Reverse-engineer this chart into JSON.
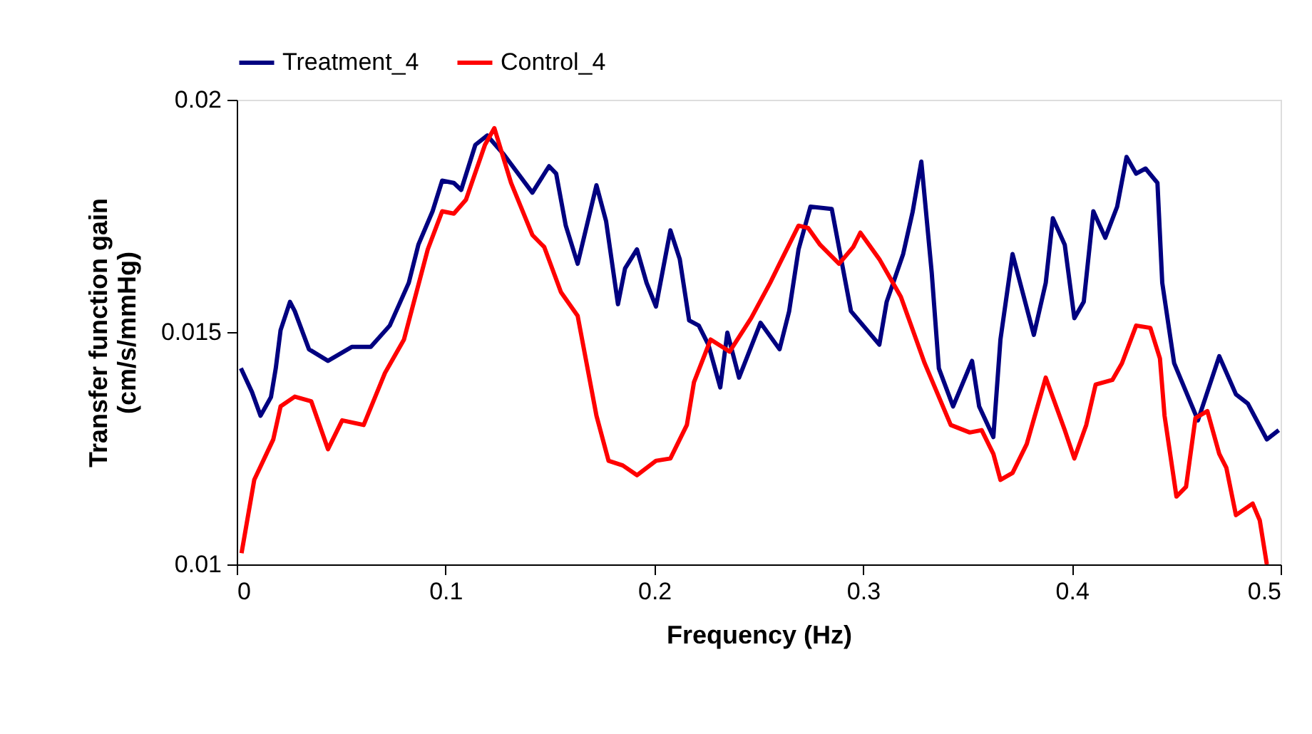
{
  "chart_data": {
    "type": "line",
    "xlabel": "Frequency (Hz)",
    "ylabel": "Transfer function gain\n(cm/s/mmHg)",
    "xlim": [
      0,
      0.5
    ],
    "xticks": [
      0,
      0.1,
      0.2,
      0.3,
      0.4,
      0.5
    ],
    "ylim": [
      0.01,
      0.02
    ],
    "yticks": [
      0.01,
      0.015,
      0.02
    ],
    "grid": false,
    "legend": "top",
    "marker": "none",
    "line_style": "solid",
    "series": [
      {
        "name": "Treatment_4",
        "color": "#000080",
        "x": [
          0.002,
          0.0073,
          0.0114,
          0.0164,
          0.0187,
          0.021,
          0.0255,
          0.0278,
          0.0346,
          0.0437,
          0.0551,
          0.0642,
          0.0733,
          0.0824,
          0.087,
          0.0938,
          0.0984,
          0.104,
          0.1075,
          0.1143,
          0.12,
          0.128,
          0.1416,
          0.1496,
          0.153,
          0.1576,
          0.1633,
          0.1723,
          0.1769,
          0.1826,
          0.186,
          0.1917,
          0.1963,
          0.2008,
          0.2077,
          0.2122,
          0.2167,
          0.2213,
          0.2259,
          0.2316,
          0.235,
          0.2406,
          0.2509,
          0.26,
          0.2646,
          0.2691,
          0.2748,
          0.285,
          0.2942,
          0.3078,
          0.3113,
          0.3192,
          0.3238,
          0.3279,
          0.3329,
          0.3363,
          0.3431,
          0.3522,
          0.3556,
          0.3624,
          0.3658,
          0.3716,
          0.3818,
          0.3875,
          0.3909,
          0.3966,
          0.4012,
          0.4057,
          0.4103,
          0.416,
          0.4217,
          0.4262,
          0.4308,
          0.4353,
          0.441,
          0.4433,
          0.449,
          0.4604,
          0.4672,
          0.4706,
          0.4786,
          0.4843,
          0.4934,
          0.4991
        ],
        "values": [
          0.01422,
          0.01371,
          0.0132,
          0.0136,
          0.01422,
          0.01504,
          0.01565,
          0.01545,
          0.01463,
          0.01438,
          0.01468,
          0.01468,
          0.01514,
          0.01606,
          0.01688,
          0.0176,
          0.01826,
          0.01821,
          0.01806,
          0.01903,
          0.01923,
          0.01882,
          0.018,
          0.01857,
          0.01841,
          0.01729,
          0.01647,
          0.01816,
          0.01739,
          0.0156,
          0.01637,
          0.01678,
          0.01606,
          0.01555,
          0.01719,
          0.01657,
          0.01525,
          0.01514,
          0.01473,
          0.01381,
          0.01499,
          0.01402,
          0.0152,
          0.01463,
          0.01545,
          0.01678,
          0.0177,
          0.01765,
          0.01545,
          0.01473,
          0.01565,
          0.01668,
          0.0176,
          0.01867,
          0.01627,
          0.01422,
          0.0134,
          0.01438,
          0.0134,
          0.01274,
          0.01484,
          0.01668,
          0.01494,
          0.01606,
          0.01745,
          0.01688,
          0.0153,
          0.01565,
          0.0176,
          0.01703,
          0.0177,
          0.01877,
          0.01841,
          0.01852,
          0.01821,
          0.01606,
          0.01433,
          0.0131,
          0.01402,
          0.01448,
          0.01366,
          0.01346,
          0.01269,
          0.01289
        ]
      },
      {
        "name": "Control_4",
        "color": "#ff0000",
        "x": [
          0.0023,
          0.0084,
          0.0175,
          0.021,
          0.0278,
          0.0357,
          0.0437,
          0.0505,
          0.0608,
          0.071,
          0.0801,
          0.0915,
          0.0984,
          0.104,
          0.1098,
          0.1189,
          0.1234,
          0.1314,
          0.1416,
          0.1473,
          0.1553,
          0.1633,
          0.1723,
          0.1781,
          0.1849,
          0.1917,
          0.2008,
          0.2077,
          0.2156,
          0.219,
          0.227,
          0.2361,
          0.2464,
          0.2555,
          0.26,
          0.2691,
          0.2737,
          0.2794,
          0.2885,
          0.2953,
          0.2987,
          0.3078,
          0.3181,
          0.3295,
          0.342,
          0.3511,
          0.3568,
          0.3624,
          0.3658,
          0.3716,
          0.3784,
          0.3875,
          0.3966,
          0.4012,
          0.4069,
          0.4114,
          0.4194,
          0.424,
          0.4308,
          0.4376,
          0.4422,
          0.4444,
          0.4501,
          0.4547,
          0.4592,
          0.4649,
          0.4706,
          0.474,
          0.4786,
          0.4866,
          0.49,
          0.4934
        ],
        "values": [
          0.01024,
          0.01182,
          0.01269,
          0.0134,
          0.01361,
          0.01351,
          0.01248,
          0.0131,
          0.013,
          0.01412,
          0.01484,
          0.01678,
          0.0176,
          0.01755,
          0.01785,
          0.01903,
          0.01939,
          0.01821,
          0.01709,
          0.01683,
          0.01586,
          0.01535,
          0.0132,
          0.01223,
          0.01213,
          0.01192,
          0.01223,
          0.01228,
          0.013,
          0.01392,
          0.01484,
          0.01458,
          0.0153,
          0.01606,
          0.01647,
          0.01729,
          0.01724,
          0.01688,
          0.01647,
          0.01683,
          0.01714,
          0.01657,
          0.01576,
          0.01433,
          0.013,
          0.01284,
          0.01289,
          0.01238,
          0.01182,
          0.01197,
          0.01259,
          0.01402,
          0.01289,
          0.01228,
          0.013,
          0.01387,
          0.01397,
          0.01433,
          0.01514,
          0.01509,
          0.01443,
          0.0132,
          0.01146,
          0.01167,
          0.01315,
          0.0133,
          0.01238,
          0.01208,
          0.01106,
          0.01131,
          0.01095,
          0.01
        ]
      }
    ]
  }
}
